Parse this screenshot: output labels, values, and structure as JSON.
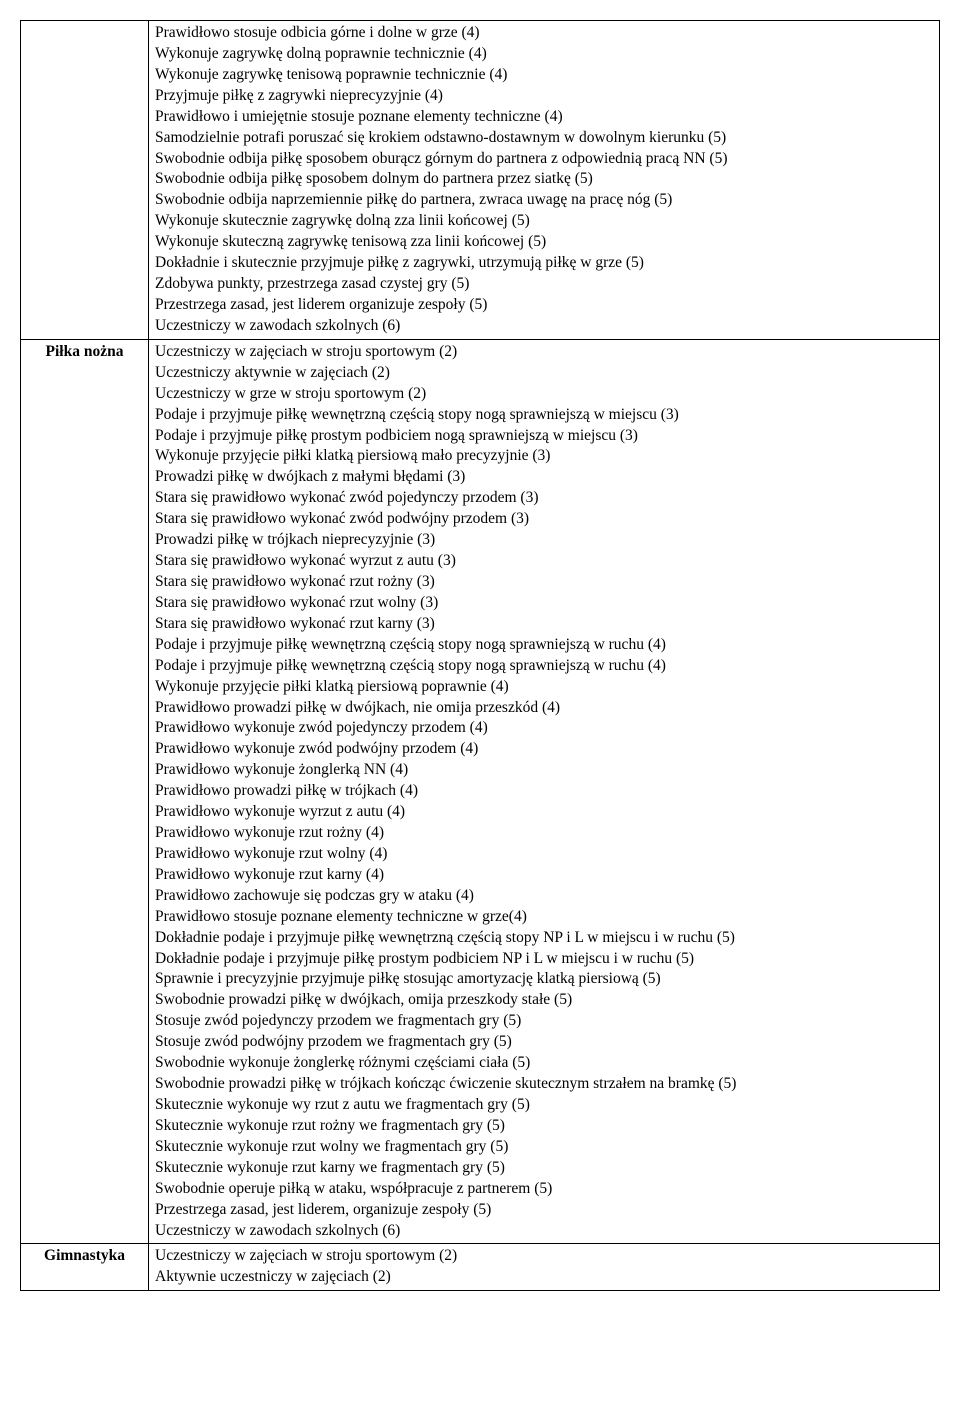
{
  "rows": [
    {
      "category": "",
      "items": [
        "Prawidłowo stosuje odbicia górne i dolne w grze (4)",
        "Wykonuje zagrywkę dolną poprawnie technicznie (4)",
        "Wykonuje zagrywkę tenisową poprawnie technicznie (4)",
        "Przyjmuje piłkę z zagrywki nieprecyzyjnie (4)",
        "Prawidłowo i umiejętnie stosuje poznane elementy techniczne (4)",
        "Samodzielnie potrafi poruszać się krokiem odstawno-dostawnym w dowolnym kierunku (5)",
        "Swobodnie odbija piłkę sposobem oburącz górnym do partnera z odpowiednią pracą NN (5)",
        "Swobodnie odbija piłkę sposobem dolnym do partnera przez siatkę (5)",
        "Swobodnie odbija naprzemiennie piłkę do partnera, zwraca uwagę na pracę nóg (5)",
        "Wykonuje skutecznie zagrywkę dolną zza linii końcowej (5)",
        "Wykonuje skuteczną zagrywkę tenisową zza linii końcowej (5)",
        "Dokładnie  i skutecznie przyjmuje piłkę z zagrywki, utrzymują piłkę w grze (5)",
        "Zdobywa punkty,  przestrzega zasad czystej gry (5)",
        "Przestrzega zasad, jest liderem organizuje zespoły (5)",
        "Uczestniczy w zawodach szkolnych (6)"
      ]
    },
    {
      "category": "Piłka nożna",
      "items": [
        "Uczestniczy w zajęciach w stroju sportowym (2)",
        "Uczestniczy aktywnie w zajęciach (2)",
        "Uczestniczy w grze w stroju sportowym (2)",
        "Podaje i przyjmuje piłkę wewnętrzną częścią stopy nogą sprawniejszą w miejscu (3)",
        "Podaje i przyjmuje piłkę prostym podbiciem  nogą sprawniejszą w miejscu (3)",
        "Wykonuje przyjęcie piłki klatką piersiową mało precyzyjnie (3)",
        "Prowadzi piłkę w dwójkach z małymi błędami (3)",
        "Stara się prawidłowo wykonać zwód pojedynczy przodem (3)",
        "Stara się prawidłowo wykonać zwód podwójny przodem (3)",
        "Prowadzi piłkę w trójkach nieprecyzyjnie (3)",
        "Stara się prawidłowo wykonać wyrzut z autu (3)",
        "Stara się prawidłowo wykonać rzut rożny (3)",
        "Stara się prawidłowo wykonać rzut wolny (3)",
        "Stara się prawidłowo wykonać rzut karny (3)",
        "Podaje i przyjmuje piłkę wewnętrzną częścią stopy nogą sprawniejszą w ruchu (4)",
        "Podaje i przyjmuje piłkę wewnętrzną częścią stopy nogą sprawniejszą w ruchu (4)",
        "Wykonuje przyjęcie piłki klatką piersiową poprawnie (4)",
        "Prawidłowo prowadzi piłkę w dwójkach, nie omija przeszkód (4)",
        "Prawidłowo wykonuje zwód pojedynczy przodem (4)",
        "Prawidłowo wykonuje zwód podwójny przodem (4)",
        "Prawidłowo wykonuje żonglerką NN (4)",
        "Prawidłowo prowadzi piłkę w trójkach (4)",
        "Prawidłowo wykonuje wyrzut z autu (4)",
        "Prawidłowo wykonuje rzut rożny (4)",
        "Prawidłowo wykonuje rzut wolny (4)",
        "Prawidłowo wykonuje rzut karny (4)",
        "Prawidłowo zachowuje się podczas  gry w ataku (4)",
        "Prawidłowo stosuje poznane elementy techniczne w grze(4)",
        "Dokładnie podaje i przyjmuje  piłkę wewnętrzną częścią stopy NP i L w miejscu i w ruchu (5)",
        "Dokładnie  podaje i przyjmuje  piłkę prostym podbiciem  NP i L w miejscu i w ruchu (5)",
        "Sprawnie i precyzyjnie przyjmuje  piłkę stosując amortyzację klatką piersiową (5)",
        "Swobodnie prowadzi piłkę w dwójkach, omija przeszkody stałe (5)",
        "Stosuje zwód pojedynczy przodem we fragmentach gry (5)",
        "Stosuje  zwód podwójny przodem we fragmentach gry (5)",
        "Swobodnie wykonuje żonglerkę różnymi częściami ciała (5)",
        "Swobodnie prowadzi piłkę w trójkach kończąc ćwiczenie skutecznym strzałem na bramkę (5)",
        "Skutecznie wykonuje wy rzut z autu we fragmentach gry (5)",
        "Skutecznie wykonuje  rzut rożny we fragmentach gry (5)",
        "Skutecznie wykonuje  rzut wolny we fragmentach gry (5)",
        "Skutecznie wykonuje  rzut karny we fragmentach gry (5)",
        "Swobodnie operuje piłką w ataku, współpracuje z partnerem (5)",
        "Przestrzega zasad, jest liderem, organizuje zespoły (5)",
        "Uczestniczy w zawodach szkolnych (6)"
      ]
    },
    {
      "category": "Gimnastyka",
      "items": [
        "Uczestniczy w zajęciach w stroju sportowym (2)",
        "Aktywnie uczestniczy w zajęciach (2)"
      ]
    }
  ]
}
